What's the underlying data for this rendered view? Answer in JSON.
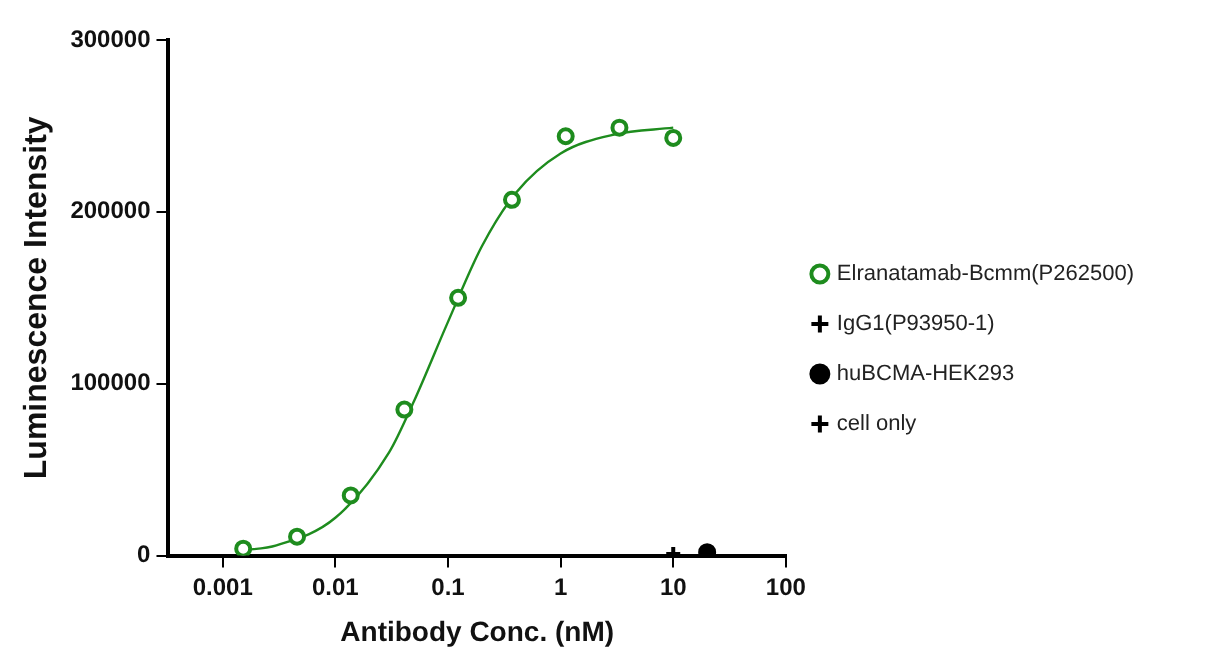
{
  "chart_data": {
    "type": "scatter",
    "xlabel": "Antibody Conc. (nM)",
    "ylabel": "Luminescence Intensity",
    "log": "x",
    "xlim": [
      0.00033,
      100
    ],
    "xticks": [
      0.001,
      0.01,
      0.1,
      1,
      10,
      100
    ],
    "ylim": [
      0,
      300000
    ],
    "yticks": [
      0,
      100000,
      200000,
      300000
    ],
    "grid": false,
    "legend": "right",
    "series": [
      {
        "name": "Elranatamab-Bcmm(P262500)",
        "color": "#1e8c1e",
        "marker": "circle",
        "x": [
          0.00152,
          0.00457,
          0.0137,
          0.041,
          0.123,
          0.37,
          1.11,
          3.33,
          10
        ],
        "values": [
          4000,
          11000,
          35000,
          85000,
          150000,
          207000,
          244000,
          249000,
          243000
        ]
      },
      {
        "name": "IgG1(P93950-1)",
        "color": "#000000",
        "marker": "cross"
      },
      {
        "name": "huBCMA-HEK293",
        "color": "#000000",
        "marker": "circle",
        "x": [
          20
        ],
        "values": [
          2000
        ]
      },
      {
        "name": "cell only",
        "color": "#000000",
        "marker": "cross",
        "x": [
          10
        ],
        "values": [
          1000
        ]
      },
      {
        "type": "line",
        "color": "#1e8c1e",
        "marker": "none",
        "x": [
          0.0015,
          0.003,
          0.01,
          0.03,
          0.05,
          0.1,
          0.2,
          0.4,
          1,
          3,
          10
        ],
        "values": [
          3000,
          6000,
          22000,
          60000,
          90000,
          136000,
          180000,
          211000,
          234000,
          245000,
          249000
        ]
      }
    ]
  }
}
